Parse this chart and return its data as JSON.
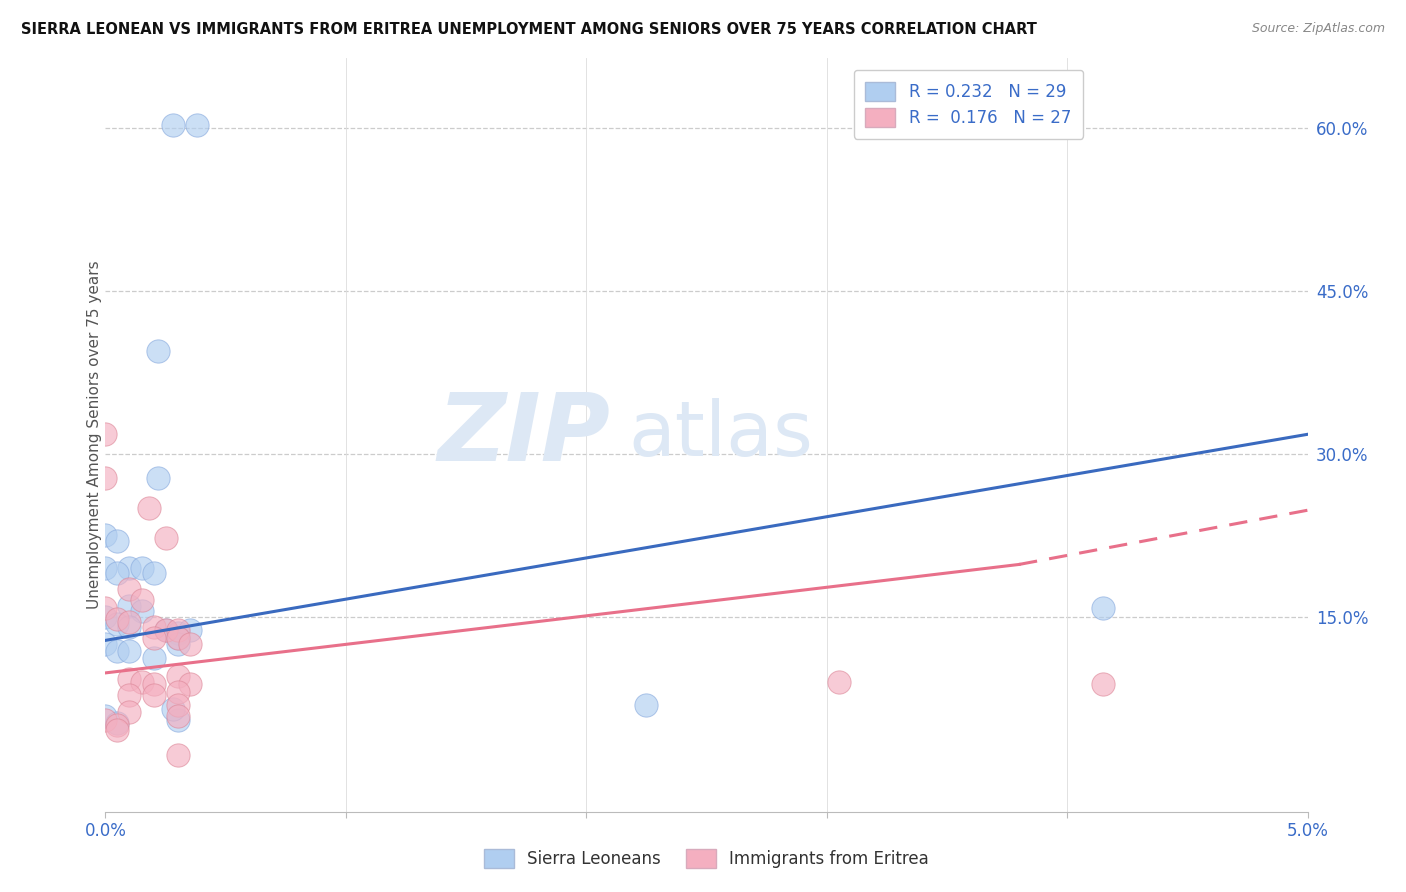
{
  "title": "SIERRA LEONEAN VS IMMIGRANTS FROM ERITREA UNEMPLOYMENT AMONG SENIORS OVER 75 YEARS CORRELATION CHART",
  "source": "Source: ZipAtlas.com",
  "ylabel": "Unemployment Among Seniors over 75 years",
  "ylabel_right_ticks": [
    "60.0%",
    "45.0%",
    "30.0%",
    "15.0%"
  ],
  "ylabel_right_vals": [
    0.6,
    0.45,
    0.3,
    0.15
  ],
  "x_min": 0.0,
  "x_max": 0.05,
  "y_min": -0.03,
  "y_max": 0.665,
  "blue_color": "#b0cef0",
  "pink_color": "#f4afc0",
  "line_blue": "#3a6abf",
  "line_pink": "#e8708a",
  "watermark_zip": "ZIP",
  "watermark_atlas": "atlas",
  "blue_scatter": [
    [
      0.0028,
      0.603
    ],
    [
      0.0038,
      0.603
    ],
    [
      0.0022,
      0.395
    ],
    [
      0.0022,
      0.278
    ],
    [
      0.0,
      0.225
    ],
    [
      0.0005,
      0.22
    ],
    [
      0.001,
      0.195
    ],
    [
      0.0015,
      0.195
    ],
    [
      0.002,
      0.19
    ],
    [
      0.0,
      0.195
    ],
    [
      0.0005,
      0.19
    ],
    [
      0.001,
      0.16
    ],
    [
      0.0015,
      0.155
    ],
    [
      0.0,
      0.15
    ],
    [
      0.0005,
      0.143
    ],
    [
      0.001,
      0.14
    ],
    [
      0.0025,
      0.138
    ],
    [
      0.003,
      0.135
    ],
    [
      0.0035,
      0.138
    ],
    [
      0.003,
      0.13
    ],
    [
      0.003,
      0.125
    ],
    [
      0.0,
      0.125
    ],
    [
      0.0005,
      0.118
    ],
    [
      0.001,
      0.118
    ],
    [
      0.002,
      0.112
    ],
    [
      0.0,
      0.058
    ],
    [
      0.0005,
      0.052
    ],
    [
      0.003,
      0.055
    ],
    [
      0.0028,
      0.065
    ],
    [
      0.0415,
      0.158
    ],
    [
      0.0225,
      0.068
    ]
  ],
  "pink_scatter": [
    [
      0.0,
      0.318
    ],
    [
      0.0,
      0.278
    ],
    [
      0.0018,
      0.25
    ],
    [
      0.0025,
      0.222
    ],
    [
      0.001,
      0.175
    ],
    [
      0.0015,
      0.165
    ],
    [
      0.0,
      0.158
    ],
    [
      0.0005,
      0.148
    ],
    [
      0.001,
      0.145
    ],
    [
      0.002,
      0.14
    ],
    [
      0.0025,
      0.138
    ],
    [
      0.003,
      0.138
    ],
    [
      0.002,
      0.13
    ],
    [
      0.003,
      0.13
    ],
    [
      0.0035,
      0.125
    ],
    [
      0.003,
      0.095
    ],
    [
      0.001,
      0.092
    ],
    [
      0.0015,
      0.09
    ],
    [
      0.002,
      0.088
    ],
    [
      0.0035,
      0.088
    ],
    [
      0.003,
      0.08
    ],
    [
      0.001,
      0.078
    ],
    [
      0.002,
      0.078
    ],
    [
      0.003,
      0.068
    ],
    [
      0.001,
      0.062
    ],
    [
      0.003,
      0.058
    ],
    [
      0.0,
      0.055
    ],
    [
      0.0005,
      0.05
    ],
    [
      0.0005,
      0.045
    ],
    [
      0.003,
      0.022
    ],
    [
      0.0305,
      0.09
    ],
    [
      0.0415,
      0.088
    ]
  ],
  "blue_line": {
    "x": [
      0.0,
      0.05
    ],
    "y": [
      0.128,
      0.318
    ]
  },
  "pink_line_solid": {
    "x": [
      0.0,
      0.038
    ],
    "y": [
      0.098,
      0.198
    ]
  },
  "pink_line_dashed": {
    "x": [
      0.038,
      0.05
    ],
    "y": [
      0.198,
      0.248
    ]
  }
}
